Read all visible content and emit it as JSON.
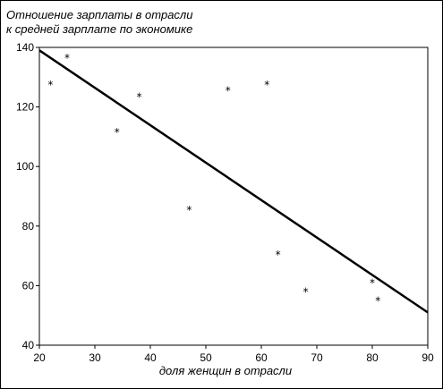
{
  "chart_data": {
    "type": "scatter",
    "title_lines": [
      "Отношение зарплаты в отрасли",
      "к средней зарплате по экономике"
    ],
    "xlabel": "доля женщин в отрасли",
    "ylabel": "",
    "xlim": [
      20,
      90
    ],
    "ylim": [
      40,
      140
    ],
    "xticks": [
      "20",
      "30",
      "40",
      "50",
      "60",
      "70",
      "80",
      "90"
    ],
    "yticks": [
      "40",
      "60",
      "80",
      "100",
      "120",
      "140"
    ],
    "grid": false,
    "marker": "*",
    "points": [
      {
        "x": 22,
        "y": 128
      },
      {
        "x": 25,
        "y": 137
      },
      {
        "x": 34,
        "y": 112
      },
      {
        "x": 38,
        "y": 124
      },
      {
        "x": 47,
        "y": 86
      },
      {
        "x": 54,
        "y": 126
      },
      {
        "x": 61,
        "y": 128
      },
      {
        "x": 63,
        "y": 71
      },
      {
        "x": 68,
        "y": 58.5
      },
      {
        "x": 80,
        "y": 61.5
      },
      {
        "x": 81,
        "y": 55.5
      }
    ],
    "trendline": [
      {
        "x": 20,
        "y": 139
      },
      {
        "x": 90,
        "y": 51
      }
    ]
  }
}
